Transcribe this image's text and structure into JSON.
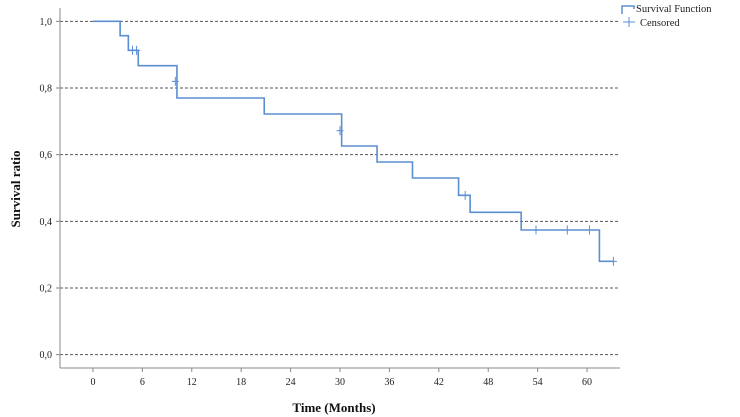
{
  "chart_data": {
    "type": "line",
    "subtype": "kaplan-meier step",
    "xlabel": "Time (Months)",
    "ylabel": "Survival ratio",
    "xlim": [
      -4,
      64
    ],
    "ylim": [
      -0.04,
      1.04
    ],
    "x_ticks": [
      0,
      6,
      12,
      18,
      24,
      30,
      36,
      42,
      48,
      54,
      60
    ],
    "x_tick_labels": [
      "0",
      "6",
      "12",
      "18",
      "24",
      "30",
      "36",
      "42",
      "48",
      "54",
      "60"
    ],
    "y_ticks": [
      0.0,
      0.2,
      0.4,
      0.6,
      0.8,
      1.0
    ],
    "y_tick_labels": [
      "0,0",
      "0,2",
      "0,4",
      "0,6",
      "0,8",
      "1,0"
    ],
    "grid": "horizontal dashed",
    "legend_position": "top-right",
    "legend": [
      "Survival Function",
      "Censored"
    ],
    "colors": {
      "line": "#5b8fd1",
      "grid": "#555555",
      "axis": "#888888"
    },
    "series": [
      {
        "name": "Survival Function",
        "kind": "step",
        "steps": [
          {
            "x": 0,
            "y": 1.0
          },
          {
            "x": 3.3,
            "y": 0.957
          },
          {
            "x": 4.3,
            "y": 0.913
          },
          {
            "x": 5.5,
            "y": 0.867
          },
          {
            "x": 10.2,
            "y": 0.77
          },
          {
            "x": 20.8,
            "y": 0.722
          },
          {
            "x": 30.2,
            "y": 0.626
          },
          {
            "x": 34.5,
            "y": 0.578
          },
          {
            "x": 38.8,
            "y": 0.53
          },
          {
            "x": 44.4,
            "y": 0.478
          },
          {
            "x": 45.8,
            "y": 0.427
          },
          {
            "x": 52.0,
            "y": 0.374
          },
          {
            "x": 61.5,
            "y": 0.28
          }
        ],
        "x_end": 63.2
      },
      {
        "name": "Censored",
        "kind": "marker",
        "points": [
          {
            "x": 4.8,
            "y": 0.913
          },
          {
            "x": 5.3,
            "y": 0.913
          },
          {
            "x": 10.0,
            "y": 0.82
          },
          {
            "x": 30.0,
            "y": 0.672
          },
          {
            "x": 45.2,
            "y": 0.478
          },
          {
            "x": 53.8,
            "y": 0.374
          },
          {
            "x": 57.6,
            "y": 0.374
          },
          {
            "x": 60.3,
            "y": 0.374
          },
          {
            "x": 63.2,
            "y": 0.28
          }
        ]
      }
    ]
  }
}
